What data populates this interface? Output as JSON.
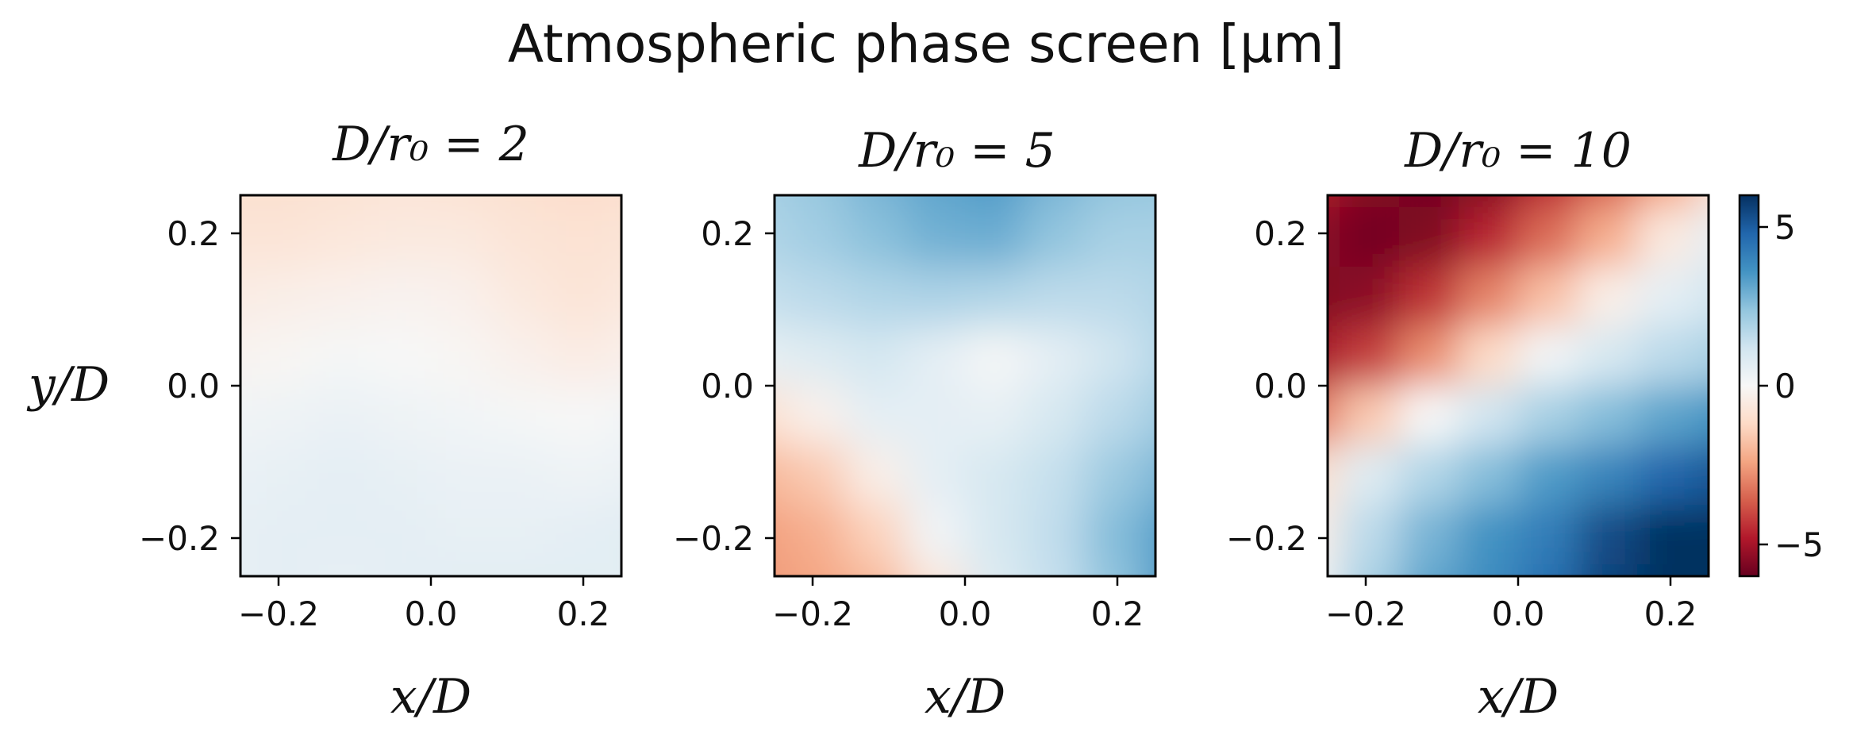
{
  "figure": {
    "title": "Atmospheric phase screen [μm]"
  },
  "chart_data": [
    {
      "type": "heatmap",
      "title": "D/r₀ = 2",
      "xlabel": "x/D",
      "ylabel": "y/D",
      "xlim": [
        -0.25,
        0.25
      ],
      "ylim": [
        -0.25,
        0.25
      ],
      "xticks": [
        "−0.2",
        "0.0",
        "0.2"
      ],
      "yticks": [
        "0.2",
        "0.0",
        "−0.2"
      ],
      "colormap": "RdBu",
      "clim": [
        -6,
        6
      ],
      "grid": false,
      "field": {
        "rows_top_to_bottom": [
          [
            -1.0,
            -1.0,
            -0.9,
            -0.8,
            -0.9,
            -1.0,
            -1.1,
            -1.0
          ],
          [
            -0.8,
            -0.8,
            -0.7,
            -0.6,
            -0.6,
            -0.8,
            -0.9,
            -0.8
          ],
          [
            -0.5,
            -0.4,
            -0.3,
            -0.2,
            -0.3,
            -0.6,
            -0.8,
            -0.6
          ],
          [
            -0.2,
            -0.1,
            0.1,
            0.0,
            -0.1,
            -0.3,
            -0.5,
            -0.3
          ],
          [
            0.2,
            0.3,
            0.4,
            0.3,
            0.2,
            0.1,
            0.0,
            0.2
          ],
          [
            0.4,
            0.5,
            0.6,
            0.5,
            0.4,
            0.4,
            0.3,
            0.4
          ],
          [
            0.5,
            0.6,
            0.6,
            0.6,
            0.5,
            0.5,
            0.6,
            0.7
          ],
          [
            0.5,
            0.6,
            0.5,
            0.6,
            0.7,
            0.7,
            0.7,
            0.6
          ]
        ]
      }
    },
    {
      "type": "heatmap",
      "title": "D/r₀ = 5",
      "xlabel": "x/D",
      "ylabel": "",
      "xlim": [
        -0.25,
        0.25
      ],
      "ylim": [
        -0.25,
        0.25
      ],
      "xticks": [
        "−0.2",
        "0.0",
        "0.2"
      ],
      "yticks": [
        "0.2",
        "0.0",
        "−0.2"
      ],
      "colormap": "RdBu",
      "clim": [
        -6,
        6
      ],
      "grid": false,
      "field": {
        "rows_top_to_bottom": [
          [
            2.0,
            2.3,
            2.8,
            3.2,
            3.4,
            2.8,
            2.4,
            2.3
          ],
          [
            1.8,
            2.1,
            2.5,
            2.9,
            3.0,
            2.4,
            2.0,
            2.0
          ],
          [
            1.4,
            1.6,
            1.8,
            1.9,
            1.8,
            1.6,
            1.6,
            1.8
          ],
          [
            0.5,
            0.8,
            1.1,
            0.6,
            0.1,
            0.6,
            1.2,
            1.8
          ],
          [
            -1.0,
            -0.3,
            0.6,
            0.6,
            0.5,
            1.0,
            1.6,
            2.2
          ],
          [
            -2.0,
            -1.6,
            -0.4,
            0.6,
            1.0,
            1.4,
            2.2,
            2.8
          ],
          [
            -2.5,
            -2.2,
            -1.4,
            0.2,
            1.0,
            1.5,
            2.6,
            3.4
          ],
          [
            -2.6,
            -2.4,
            -2.0,
            -0.8,
            0.8,
            1.4,
            2.4,
            3.5
          ]
        ]
      }
    },
    {
      "type": "heatmap",
      "title": "D/r₀ = 10",
      "xlabel": "x/D",
      "ylabel": "",
      "xlim": [
        -0.25,
        0.25
      ],
      "ylim": [
        -0.25,
        0.25
      ],
      "xticks": [
        "−0.2",
        "0.0",
        "0.2"
      ],
      "yticks": [
        "0.2",
        "0.0",
        "−0.2"
      ],
      "colormap": "RdBu",
      "clim": [
        -6,
        6
      ],
      "grid": false,
      "colorbar": {
        "ticks": [
          5,
          0,
          -5
        ],
        "tick_labels": [
          "5",
          "0",
          "−5"
        ]
      },
      "field": {
        "rows_top_to_bottom": [
          [
            -4.8,
            -5.5,
            -5.8,
            -5.6,
            -4.6,
            -3.6,
            -2.4,
            -0.8
          ],
          [
            -5.4,
            -5.8,
            -5.6,
            -4.6,
            -3.4,
            -2.2,
            -0.6,
            0.6
          ],
          [
            -5.6,
            -5.4,
            -4.4,
            -3.0,
            -1.8,
            -0.4,
            0.6,
            1.2
          ],
          [
            -5.0,
            -4.2,
            -2.8,
            -1.2,
            0.2,
            1.0,
            1.6,
            2.0
          ],
          [
            -3.2,
            -1.6,
            0.0,
            1.2,
            2.0,
            2.6,
            3.2,
            3.6
          ],
          [
            -1.0,
            0.8,
            1.8,
            2.6,
            3.4,
            4.0,
            4.8,
            5.2
          ],
          [
            -0.4,
            1.6,
            2.8,
            3.6,
            4.2,
            5.4,
            6.0,
            6.0
          ],
          [
            0.2,
            2.0,
            3.2,
            3.8,
            4.6,
            5.6,
            6.0,
            6.0
          ]
        ]
      }
    }
  ]
}
